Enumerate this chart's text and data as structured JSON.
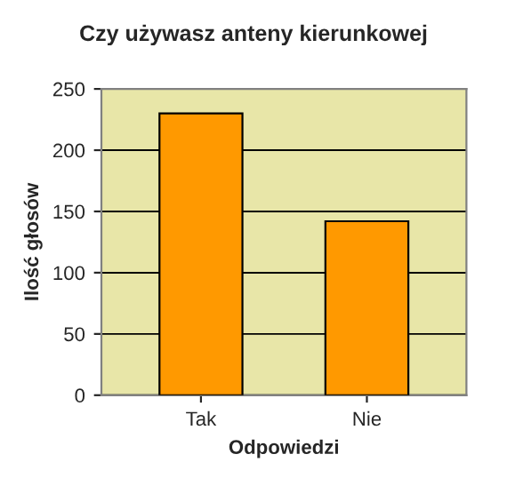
{
  "chart_data": {
    "type": "bar",
    "title": "Czy używasz anteny kierunkowej",
    "xlabel": "Odpowiedzi",
    "ylabel": "Ilość głosów",
    "categories": [
      "Tak",
      "Nie"
    ],
    "values": [
      230,
      142
    ],
    "color": "#ff9900",
    "ylim": [
      0,
      250
    ],
    "yticks": [
      0,
      50,
      100,
      150,
      200,
      250
    ],
    "grid": "y",
    "legend": false
  }
}
